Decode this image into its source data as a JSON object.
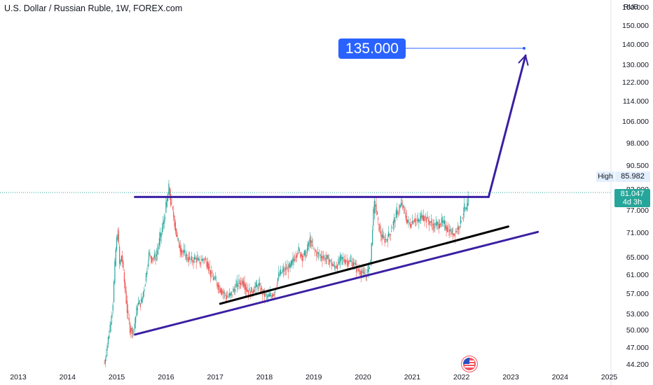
{
  "chart_data": {
    "type": "candlestick",
    "title": "U.S. Dollar / Russian Ruble, 1W, FOREX.com",
    "y_unit": "RUB",
    "y_scale": "log",
    "ylim": [
      44.2,
      160.0
    ],
    "xlim": [
      2012.6,
      2025.2
    ],
    "y_ticks": [
      "160.000",
      "150.000",
      "140.000",
      "130.000",
      "122.000",
      "114.000",
      "106.000",
      "98.000",
      "90.500",
      "83.000",
      "77.000",
      "71.000",
      "65.000",
      "61.000",
      "57.000",
      "53.000",
      "50.000",
      "47.000",
      "44.200"
    ],
    "x_ticks": [
      "2013",
      "2014",
      "2015",
      "2016",
      "2017",
      "2018",
      "2019",
      "2020",
      "2021",
      "2022",
      "2023",
      "2024",
      "2025"
    ],
    "high_label": "High",
    "high_value": "85.982",
    "last_price": "81.047",
    "countdown": "4d 3h",
    "target_label": "135.000",
    "price_path": [
      [
        2014.75,
        44.5
      ],
      [
        2014.85,
        50
      ],
      [
        2014.92,
        55
      ],
      [
        2014.98,
        67
      ],
      [
        2015.02,
        72
      ],
      [
        2015.06,
        63
      ],
      [
        2015.1,
        66
      ],
      [
        2015.15,
        60
      ],
      [
        2015.22,
        53
      ],
      [
        2015.28,
        50
      ],
      [
        2015.35,
        50.5
      ],
      [
        2015.42,
        55
      ],
      [
        2015.5,
        55.5
      ],
      [
        2015.58,
        60
      ],
      [
        2015.65,
        66
      ],
      [
        2015.72,
        65
      ],
      [
        2015.8,
        65.5
      ],
      [
        2015.88,
        70
      ],
      [
        2015.95,
        74
      ],
      [
        2016.02,
        80
      ],
      [
        2016.06,
        84
      ],
      [
        2016.1,
        79
      ],
      [
        2016.15,
        76
      ],
      [
        2016.22,
        70
      ],
      [
        2016.3,
        67
      ],
      [
        2016.38,
        66
      ],
      [
        2016.45,
        65
      ],
      [
        2016.52,
        64.5
      ],
      [
        2016.6,
        65
      ],
      [
        2016.68,
        64
      ],
      [
        2016.76,
        65
      ],
      [
        2016.84,
        64
      ],
      [
        2016.92,
        61
      ],
      [
        2017.0,
        60
      ],
      [
        2017.08,
        58.5
      ],
      [
        2017.16,
        57.5
      ],
      [
        2017.24,
        56.5
      ],
      [
        2017.32,
        57
      ],
      [
        2017.4,
        58.5
      ],
      [
        2017.48,
        59.5
      ],
      [
        2017.56,
        60
      ],
      [
        2017.64,
        58
      ],
      [
        2017.72,
        57.5
      ],
      [
        2017.8,
        58.5
      ],
      [
        2017.88,
        59
      ],
      [
        2017.96,
        57.5
      ],
      [
        2018.04,
        56.5
      ],
      [
        2018.12,
        56.8
      ],
      [
        2018.2,
        57.5
      ],
      [
        2018.28,
        61
      ],
      [
        2018.36,
        62
      ],
      [
        2018.44,
        62.5
      ],
      [
        2018.52,
        63
      ],
      [
        2018.6,
        65
      ],
      [
        2018.68,
        67
      ],
      [
        2018.76,
        65.5
      ],
      [
        2018.84,
        66
      ],
      [
        2018.92,
        69.5
      ],
      [
        2019.0,
        67
      ],
      [
        2019.08,
        66
      ],
      [
        2019.16,
        65.5
      ],
      [
        2019.24,
        65
      ],
      [
        2019.32,
        64.5
      ],
      [
        2019.4,
        63
      ],
      [
        2019.48,
        63.5
      ],
      [
        2019.56,
        65
      ],
      [
        2019.64,
        64.5
      ],
      [
        2019.72,
        64.3
      ],
      [
        2019.8,
        64
      ],
      [
        2019.88,
        62.5
      ],
      [
        2019.96,
        62
      ],
      [
        2020.04,
        61
      ],
      [
        2020.1,
        62
      ],
      [
        2020.16,
        65
      ],
      [
        2020.2,
        75
      ],
      [
        2020.24,
        80
      ],
      [
        2020.3,
        74
      ],
      [
        2020.38,
        70
      ],
      [
        2020.46,
        69.5
      ],
      [
        2020.54,
        71
      ],
      [
        2020.62,
        74
      ],
      [
        2020.7,
        77
      ],
      [
        2020.78,
        79
      ],
      [
        2020.84,
        77
      ],
      [
        2020.9,
        74
      ],
      [
        2020.96,
        73.5
      ],
      [
        2021.04,
        75
      ],
      [
        2021.12,
        74
      ],
      [
        2021.2,
        76
      ],
      [
        2021.28,
        75
      ],
      [
        2021.36,
        74
      ],
      [
        2021.44,
        73
      ],
      [
        2021.52,
        73.5
      ],
      [
        2021.6,
        74
      ],
      [
        2021.68,
        73
      ],
      [
        2021.76,
        71.5
      ],
      [
        2021.84,
        71
      ],
      [
        2021.9,
        72
      ],
      [
        2021.96,
        73.5
      ],
      [
        2022.02,
        76
      ],
      [
        2022.06,
        78
      ],
      [
        2022.1,
        77
      ],
      [
        2022.14,
        81
      ]
    ],
    "lines": [
      {
        "name": "horizontal resistance",
        "color": "#3a1fa3",
        "points": [
          [
            2015.37,
            81.1
          ],
          [
            2022.55,
            81.1
          ]
        ]
      },
      {
        "name": "breakout arrow",
        "color": "#3a1fa3",
        "points": [
          [
            2022.55,
            81.1
          ],
          [
            2023.3,
            135
          ]
        ]
      },
      {
        "name": "lower support trend",
        "color": "#3a1fa3",
        "points": [
          [
            2015.37,
            49.4
          ],
          [
            2023.55,
            71.5
          ]
        ]
      },
      {
        "name": "upper support trend",
        "color": "#000000",
        "points": [
          [
            2017.1,
            55.2
          ],
          [
            2022.95,
            72.9
          ]
        ]
      }
    ],
    "colors": {
      "up": "#26a69a",
      "down": "#ef5350",
      "annotation": "#2962ff",
      "trend": "#3a1fa3"
    }
  }
}
